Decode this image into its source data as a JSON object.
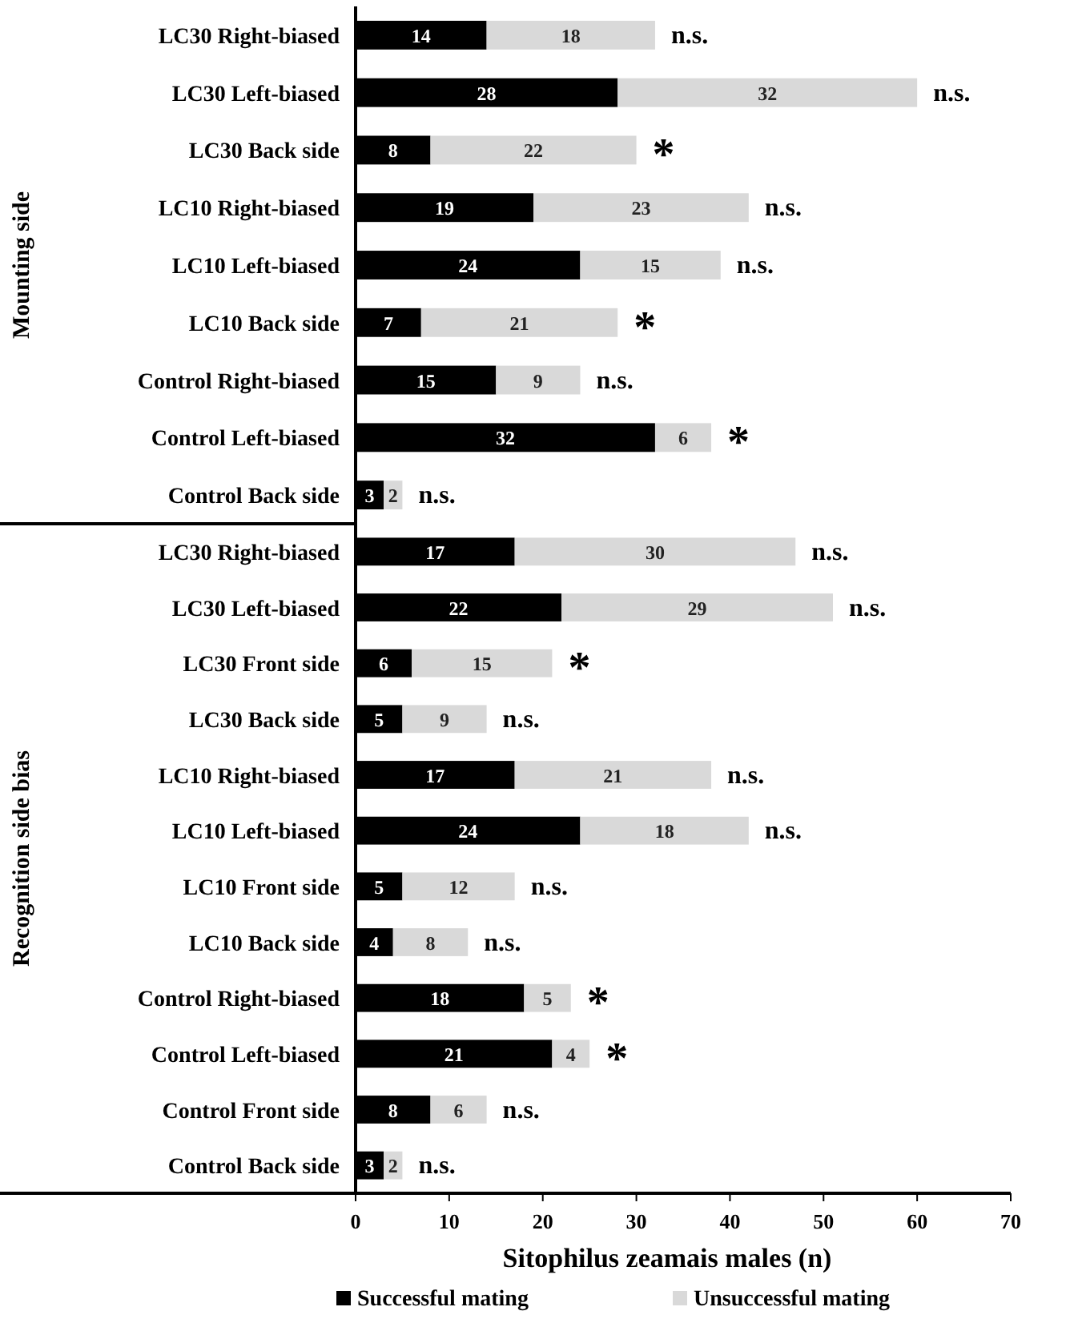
{
  "chart_data": [
    {
      "type": "bar",
      "orientation": "horizontal",
      "stacked": true,
      "ylabel": "Mounting side",
      "categories": [
        "LC30 Right-biased",
        "LC30 Left-biased",
        "LC30 Back side",
        "LC10 Right-biased",
        "LC10 Left-biased",
        "LC10 Back side",
        "Control Right-biased",
        "Control Left-biased",
        "Control Back side"
      ],
      "series": [
        {
          "color": "#000000",
          "values": [
            14,
            28,
            8,
            19,
            24,
            7,
            15,
            32,
            3
          ]
        },
        {
          "color": "#d9d9d9",
          "values": [
            18,
            32,
            22,
            23,
            15,
            21,
            9,
            6,
            2
          ]
        }
      ],
      "xlim": [
        0,
        70
      ],
      "xticks": [
        0,
        10,
        20,
        30,
        40,
        50,
        60,
        70
      ],
      "tick_labels": "y",
      "data_labels": true,
      "grid": false,
      "legend": false,
      "annotations": [
        {
          "text": "n.s.",
          "x": 32,
          "y": "LC30 Right-biased"
        },
        {
          "text": "n.s.",
          "x": 60,
          "y": "LC30 Left-biased"
        },
        {
          "text": "*",
          "x": 30,
          "y": "LC30 Back side"
        },
        {
          "text": "n.s.",
          "x": 42,
          "y": "LC10 Right-biased"
        },
        {
          "text": "n.s.",
          "x": 39,
          "y": "LC10 Left-biased"
        },
        {
          "text": "*",
          "x": 28,
          "y": "LC10 Back side"
        },
        {
          "text": "n.s.",
          "x": 24,
          "y": "Control Right-biased"
        },
        {
          "text": "*",
          "x": 38,
          "y": "Control Left-biased"
        },
        {
          "text": "n.s.",
          "x": 5,
          "y": "Control Back side"
        }
      ]
    },
    {
      "type": "bar",
      "orientation": "horizontal",
      "stacked": true,
      "ylabel": "Recognition side bias",
      "xlabel": "Sitophilus zeamais males (n)",
      "categories": [
        "LC30 Right-biased",
        "LC30 Left-biased",
        "LC30 Front side",
        "LC30 Back side",
        "LC10 Right-biased",
        "LC10 Left-biased",
        "LC10 Front side",
        "LC10 Back side",
        "Control Right-biased",
        "Control Left-biased",
        "Control Front side",
        "Control Back side"
      ],
      "series": [
        {
          "name": "Successful mating",
          "color": "#000000",
          "values": [
            17,
            22,
            6,
            5,
            17,
            24,
            5,
            4,
            18,
            21,
            8,
            3
          ]
        },
        {
          "name": "Unsuccessful mating",
          "color": "#d9d9d9",
          "values": [
            30,
            29,
            15,
            9,
            21,
            18,
            12,
            8,
            5,
            4,
            6,
            2
          ]
        }
      ],
      "xlim": [
        0,
        70
      ],
      "xticks": [
        0,
        10,
        20,
        30,
        40,
        50,
        60,
        70
      ],
      "data_labels": true,
      "grid": false,
      "legend": "bottom",
      "annotations": [
        {
          "text": "n.s.",
          "x": 47,
          "y": "LC30 Right-biased"
        },
        {
          "text": "n.s.",
          "x": 51,
          "y": "LC30 Left-biased"
        },
        {
          "text": "*",
          "x": 21,
          "y": "LC30 Front side"
        },
        {
          "text": "n.s.",
          "x": 14,
          "y": "LC30 Back side"
        },
        {
          "text": "n.s.",
          "x": 38,
          "y": "LC10 Right-biased"
        },
        {
          "text": "n.s.",
          "x": 42,
          "y": "LC10 Left-biased"
        },
        {
          "text": "n.s.",
          "x": 17,
          "y": "LC10 Front side"
        },
        {
          "text": "n.s.",
          "x": 12,
          "y": "LC10 Back side"
        },
        {
          "text": "*",
          "x": 23,
          "y": "Control Right-biased"
        },
        {
          "text": "*",
          "x": 25,
          "y": "Control Left-biased"
        },
        {
          "text": "n.s.",
          "x": 14,
          "y": "Control Front side"
        },
        {
          "text": "n.s.",
          "x": 5,
          "y": "Control Back side"
        }
      ]
    }
  ]
}
